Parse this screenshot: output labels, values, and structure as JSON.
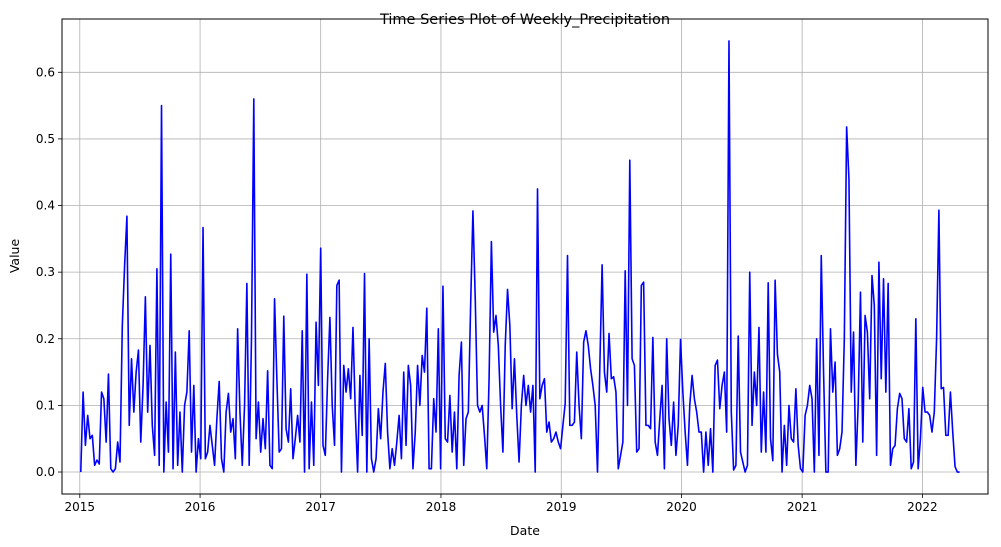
{
  "chart_data": {
    "type": "line",
    "title": "Time Series Plot of Weekly_Precipitation",
    "xlabel": "Date",
    "ylabel": "Value",
    "x_range": [
      "2014-11-08",
      "2022-07-19"
    ],
    "ylim": [
      -0.033,
      0.68
    ],
    "x_ticks": [
      "2015",
      "2016",
      "2017",
      "2018",
      "2019",
      "2020",
      "2021",
      "2022"
    ],
    "y_ticks": [
      "0.0",
      "0.1",
      "0.2",
      "0.3",
      "0.4",
      "0.5",
      "0.6"
    ],
    "grid": true,
    "line_color": "#0000ff",
    "series": [
      {
        "x_start": "2015-01-04",
        "interval": "weekly",
        "values": [
          0.0,
          0.12,
          0.04,
          0.085,
          0.05,
          0.055,
          0.01,
          0.018,
          0.012,
          0.12,
          0.11,
          0.045,
          0.147,
          0.005,
          0.0,
          0.005,
          0.045,
          0.015,
          0.22,
          0.31,
          0.384,
          0.07,
          0.17,
          0.09,
          0.15,
          0.183,
          0.045,
          0.13,
          0.263,
          0.09,
          0.19,
          0.07,
          0.025,
          0.305,
          0.01,
          0.55,
          0.0,
          0.105,
          0.03,
          0.327,
          0.005,
          0.18,
          0.01,
          0.09,
          0.0,
          0.1,
          0.12,
          0.212,
          0.03,
          0.13,
          0.0,
          0.05,
          0.02,
          0.367,
          0.02,
          0.03,
          0.07,
          0.04,
          0.01,
          0.08,
          0.136,
          0.02,
          0.0,
          0.09,
          0.118,
          0.06,
          0.08,
          0.02,
          0.215,
          0.09,
          0.01,
          0.1,
          0.283,
          0.01,
          0.2,
          0.56,
          0.05,
          0.105,
          0.03,
          0.08,
          0.035,
          0.152,
          0.01,
          0.005,
          0.26,
          0.14,
          0.03,
          0.035,
          0.234,
          0.065,
          0.045,
          0.125,
          0.02,
          0.05,
          0.085,
          0.045,
          0.212,
          0.0,
          0.297,
          0.005,
          0.105,
          0.01,
          0.225,
          0.13,
          0.336,
          0.04,
          0.025,
          0.14,
          0.232,
          0.1,
          0.04,
          0.28,
          0.288,
          0.0,
          0.16,
          0.12,
          0.155,
          0.11,
          0.217,
          0.09,
          0.0,
          0.145,
          0.055,
          0.298,
          0.0,
          0.2,
          0.02,
          0.0,
          0.02,
          0.095,
          0.05,
          0.12,
          0.163,
          0.06,
          0.005,
          0.035,
          0.01,
          0.045,
          0.085,
          0.02,
          0.15,
          0.04,
          0.16,
          0.13,
          0.005,
          0.06,
          0.16,
          0.1,
          0.175,
          0.15,
          0.246,
          0.005,
          0.005,
          0.11,
          0.06,
          0.215,
          0.005,
          0.279,
          0.05,
          0.045,
          0.115,
          0.03,
          0.09,
          0.005,
          0.145,
          0.195,
          0.01,
          0.08,
          0.09,
          0.25,
          0.392,
          0.26,
          0.1,
          0.09,
          0.1,
          0.055,
          0.005,
          0.14,
          0.346,
          0.21,
          0.235,
          0.19,
          0.1,
          0.03,
          0.19,
          0.274,
          0.22,
          0.095,
          0.17,
          0.085,
          0.015,
          0.1,
          0.145,
          0.1,
          0.13,
          0.09,
          0.13,
          0.0,
          0.425,
          0.11,
          0.13,
          0.14,
          0.06,
          0.075,
          0.045,
          0.05,
          0.06,
          0.045,
          0.035,
          0.07,
          0.103,
          0.325,
          0.07,
          0.07,
          0.075,
          0.18,
          0.1,
          0.05,
          0.195,
          0.212,
          0.19,
          0.155,
          0.13,
          0.1,
          0.0,
          0.156,
          0.311,
          0.15,
          0.12,
          0.208,
          0.14,
          0.143,
          0.12,
          0.005,
          0.025,
          0.045,
          0.302,
          0.1,
          0.468,
          0.17,
          0.16,
          0.03,
          0.035,
          0.28,
          0.285,
          0.07,
          0.07,
          0.065,
          0.202,
          0.045,
          0.025,
          0.08,
          0.13,
          0.005,
          0.2,
          0.08,
          0.04,
          0.105,
          0.025,
          0.07,
          0.199,
          0.12,
          0.06,
          0.01,
          0.1,
          0.145,
          0.11,
          0.09,
          0.06,
          0.06,
          0.0,
          0.06,
          0.01,
          0.065,
          0.0,
          0.16,
          0.168,
          0.095,
          0.13,
          0.15,
          0.06,
          0.647,
          0.09,
          0.003,
          0.01,
          0.204,
          0.03,
          0.015,
          0.0,
          0.01,
          0.3,
          0.07,
          0.15,
          0.1,
          0.217,
          0.03,
          0.12,
          0.03,
          0.284,
          0.05,
          0.017,
          0.288,
          0.177,
          0.15,
          0.0,
          0.07,
          0.01,
          0.1,
          0.05,
          0.045,
          0.125,
          0.04,
          0.005,
          0.0,
          0.085,
          0.1,
          0.13,
          0.11,
          0.0,
          0.2,
          0.025,
          0.325,
          0.15,
          0.0,
          0.0,
          0.215,
          0.12,
          0.165,
          0.025,
          0.035,
          0.06,
          0.2,
          0.518,
          0.44,
          0.12,
          0.21,
          0.01,
          0.1,
          0.27,
          0.045,
          0.235,
          0.21,
          0.11,
          0.295,
          0.25,
          0.025,
          0.315,
          0.14,
          0.29,
          0.12,
          0.283,
          0.01,
          0.035,
          0.04,
          0.095,
          0.118,
          0.11,
          0.05,
          0.045,
          0.095,
          0.005,
          0.015,
          0.23,
          0.005,
          0.05,
          0.127,
          0.09,
          0.09,
          0.085,
          0.06,
          0.09,
          0.2,
          0.393,
          0.125,
          0.127,
          0.055,
          0.055,
          0.12,
          0.06,
          0.008,
          0.0,
          0.0
        ]
      }
    ]
  }
}
